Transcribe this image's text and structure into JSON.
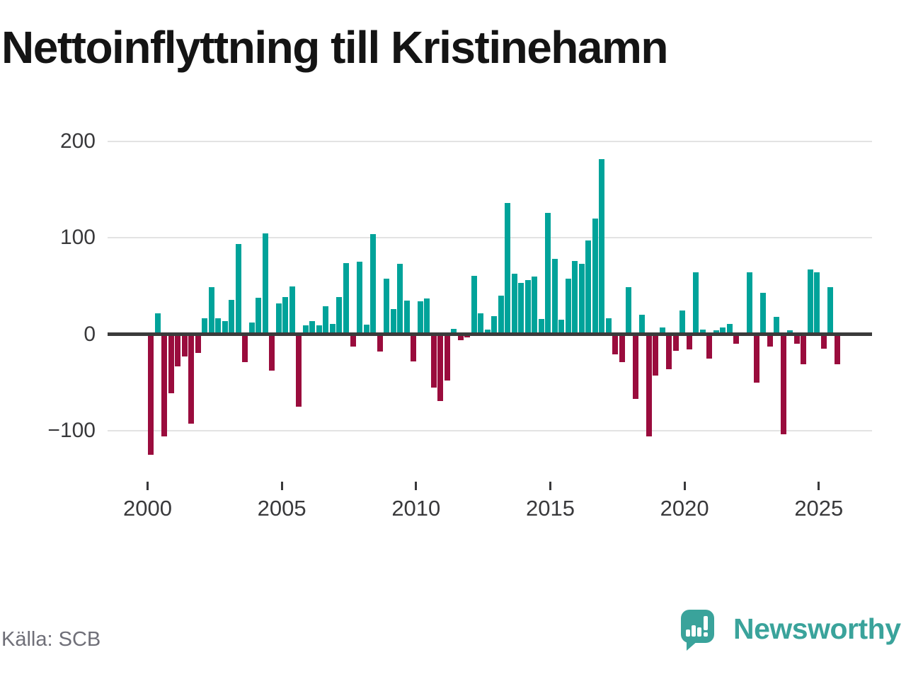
{
  "title": "Nettoinflyttning till Kristinehamn",
  "source": "Källa: SCB",
  "brand": {
    "name": "Newsworthy"
  },
  "colors": {
    "positive": "#00a39a",
    "negative": "#9a0c3d",
    "axis": "#3b3b3b",
    "grid": "#e3e3e3",
    "tick_label": "#39393b",
    "title": "#141414",
    "source": "#6f6f78",
    "brand": "#3aa39b"
  },
  "chart_data": {
    "type": "bar",
    "title": "Nettoinflyttning till Kristinehamn",
    "frequency": "quarterly",
    "start_year": 2000,
    "start_quarter": 1,
    "end_year": 2025,
    "end_quarter": 3,
    "x_ticks": [
      2000,
      2005,
      2010,
      2015,
      2020,
      2025
    ],
    "y_ticks": [
      200,
      100,
      0,
      -100
    ],
    "ylim": [
      -140,
      215
    ],
    "grid": "horizontal",
    "legend": "none",
    "values": [
      -125,
      22,
      -106,
      -61,
      -33,
      -23,
      -93,
      -19,
      17,
      49,
      17,
      14,
      36,
      94,
      -29,
      12,
      38,
      105,
      -38,
      32,
      39,
      50,
      -75,
      9,
      14,
      9,
      29,
      11,
      39,
      74,
      -13,
      75,
      10,
      104,
      -18,
      58,
      26,
      73,
      35,
      -28,
      34,
      37,
      -55,
      -69,
      -48,
      6,
      -6,
      -3,
      61,
      22,
      5,
      19,
      40,
      136,
      63,
      53,
      56,
      60,
      16,
      126,
      78,
      15,
      58,
      76,
      73,
      97,
      120,
      182,
      17,
      -21,
      -29,
      49,
      -67,
      20,
      -106,
      -43,
      7,
      -36,
      -17,
      25,
      -16,
      64,
      5,
      -25,
      4,
      7,
      11,
      -10,
      0,
      64,
      -50,
      43,
      -13,
      18,
      -104,
      4,
      -10,
      -31,
      67,
      64,
      -15,
      49,
      -31
    ]
  }
}
